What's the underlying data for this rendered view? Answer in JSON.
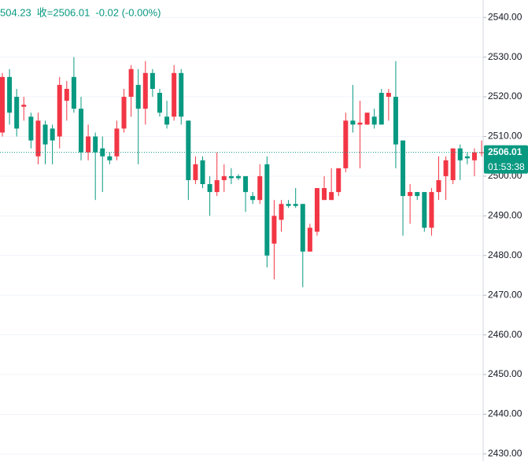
{
  "chart_data": {
    "type": "candlestick",
    "ohlc_readout": [
      "504.23",
      "收=2506.01",
      "-0.02 (-0.00%)"
    ],
    "up_color": "#f23645",
    "down_color": "#089981",
    "open": [
      2511,
      2525,
      2520,
      2517.5,
      2515,
      2505,
      2513,
      2512,
      2510,
      2519,
      2525,
      2517,
      2506,
      2510,
      2507,
      2505,
      2505,
      2512,
      2520,
      2523,
      2517,
      2526,
      2521,
      2515,
      2515,
      2526,
      2514,
      2499,
      2504,
      2498,
      2496,
      2499,
      2500,
      2500,
      2500,
      2495,
      2494,
      2503,
      2483,
      2489,
      2493,
      2493,
      2493,
      2481,
      2486,
      2494,
      2494,
      2496,
      2502,
      2514,
      2513,
      2513,
      2515,
      2521,
      2520,
      2520,
      2509,
      2495,
      2496,
      2496,
      2487,
      2496,
      2500,
      2499,
      2507,
      2505,
      2504,
      2506
    ],
    "high": [
      2526,
      2527,
      2522,
      2520,
      2516,
      2516,
      2514,
      2513,
      2525,
      2524,
      2530,
      2520,
      2513,
      2511,
      2510,
      2506,
      2514,
      2522,
      2528,
      2527,
      2529,
      2527,
      2522,
      2519,
      2528,
      2527,
      2514,
      2505,
      2505,
      2500,
      2506,
      2503,
      2502,
      2500.5,
      2500,
      2496,
      2503,
      2505,
      2494,
      2494,
      2494,
      2497,
      2493,
      2488,
      2497,
      2500,
      2502,
      2502,
      2516,
      2523,
      2519,
      2516,
      2517,
      2522,
      2522,
      2529,
      2509,
      2498,
      2496,
      2496,
      2497,
      2505,
      2505,
      2507,
      2508,
      2506,
      2507,
      2509
    ],
    "low": [
      2510,
      2513,
      2510,
      2514,
      2507,
      2503,
      2503,
      2503,
      2507,
      2514,
      2516,
      2504,
      2504,
      2494,
      2496,
      2503,
      2504,
      2511,
      2515,
      2503,
      2513,
      2520,
      2515,
      2512,
      2514,
      2513,
      2494,
      2498,
      2497,
      2490,
      2495,
      2496,
      2498,
      2499,
      2491,
      2493,
      2493,
      2477,
      2474,
      2486,
      2492,
      2492,
      2472,
      2481,
      2485,
      2494,
      2494,
      2495,
      2501,
      2511,
      2502,
      2513,
      2512,
      2513,
      2514,
      2502,
      2485,
      2488,
      2494,
      2486,
      2485,
      2494,
      2494,
      2498,
      2499,
      2503,
      2500,
      2505
    ],
    "close": [
      2525,
      2516,
      2512,
      2518,
      2509,
      2514,
      2508,
      2509,
      2523,
      2522,
      2517,
      2506,
      2510,
      2506,
      2505,
      2504,
      2512,
      2520,
      2527,
      2517,
      2526,
      2522,
      2516,
      2513,
      2526,
      2515,
      2499,
      2503,
      2498,
      2496,
      2499,
      2500,
      2499.5,
      2499.5,
      2496,
      2494,
      2500,
      2480,
      2490,
      2493,
      2492.5,
      2492.5,
      2481,
      2487,
      2497,
      2497,
      2496,
      2502,
      2514,
      2513,
      2513.5,
      2516,
      2513,
      2513,
      2521,
      2508,
      2495,
      2496,
      2495,
      2487,
      2496,
      2499,
      2504,
      2507,
      2504,
      2504.5,
      2506,
      2506.01
    ],
    "ylim": [
      2428.2,
      2544.4
    ],
    "yticks": [
      {
        "value": 2430,
        "label": "2430.00"
      },
      {
        "value": 2440,
        "label": "2440.00"
      },
      {
        "value": 2450,
        "label": "2450.00"
      },
      {
        "value": 2460,
        "label": "2460.00"
      },
      {
        "value": 2470,
        "label": "2470.00"
      },
      {
        "value": 2480,
        "label": "2480.00"
      },
      {
        "value": 2490,
        "label": "2490.00"
      },
      {
        "value": 2500,
        "label": "2500.00"
      },
      {
        "value": 2510,
        "label": "2510.00"
      },
      {
        "value": 2520,
        "label": "2520.00"
      },
      {
        "value": 2530,
        "label": "2530.00"
      },
      {
        "value": 2540,
        "label": "2540.00"
      }
    ],
    "grid": true,
    "last_price": {
      "value": 2506.01,
      "label": "2506.01"
    },
    "countdown": "01:53:38"
  }
}
